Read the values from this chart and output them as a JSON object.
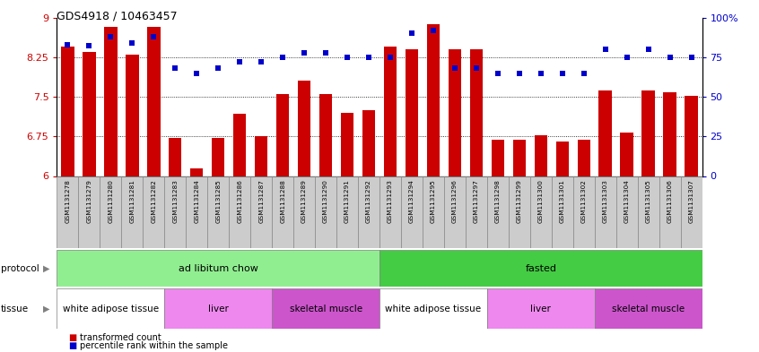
{
  "title": "GDS4918 / 10463457",
  "samples": [
    "GSM1131278",
    "GSM1131279",
    "GSM1131280",
    "GSM1131281",
    "GSM1131282",
    "GSM1131283",
    "GSM1131284",
    "GSM1131285",
    "GSM1131286",
    "GSM1131287",
    "GSM1131288",
    "GSM1131289",
    "GSM1131290",
    "GSM1131291",
    "GSM1131292",
    "GSM1131293",
    "GSM1131294",
    "GSM1131295",
    "GSM1131296",
    "GSM1131297",
    "GSM1131298",
    "GSM1131299",
    "GSM1131300",
    "GSM1131301",
    "GSM1131302",
    "GSM1131303",
    "GSM1131304",
    "GSM1131305",
    "GSM1131306",
    "GSM1131307"
  ],
  "bar_values": [
    8.45,
    8.35,
    8.82,
    8.3,
    8.82,
    6.72,
    6.15,
    6.72,
    7.18,
    6.75,
    7.55,
    7.8,
    7.55,
    7.2,
    7.25,
    8.45,
    8.4,
    8.88,
    8.4,
    8.4,
    6.68,
    6.68,
    6.78,
    6.65,
    6.68,
    7.62,
    6.82,
    7.62,
    7.58,
    7.52
  ],
  "percentile_values": [
    83,
    82,
    88,
    84,
    88,
    68,
    65,
    68,
    72,
    72,
    75,
    78,
    78,
    75,
    75,
    75,
    90,
    92,
    68,
    68,
    65,
    65,
    65,
    65,
    65,
    80,
    75,
    80,
    75,
    75
  ],
  "bar_color": "#cc0000",
  "dot_color": "#0000cc",
  "ylim_left": [
    6,
    9
  ],
  "ylim_right": [
    0,
    100
  ],
  "yticks_left": [
    6,
    6.75,
    7.5,
    8.25,
    9
  ],
  "yticks_right": [
    0,
    25,
    50,
    75,
    100
  ],
  "protocol_groups": [
    {
      "label": "ad libitum chow",
      "start": 0,
      "end": 14,
      "color": "#90ee90"
    },
    {
      "label": "fasted",
      "start": 15,
      "end": 29,
      "color": "#44cc44"
    }
  ],
  "tissue_groups": [
    {
      "label": "white adipose tissue",
      "start": 0,
      "end": 4,
      "color": "#ffffff"
    },
    {
      "label": "liver",
      "start": 5,
      "end": 9,
      "color": "#ee88ee"
    },
    {
      "label": "skeletal muscle",
      "start": 10,
      "end": 14,
      "color": "#cc55cc"
    },
    {
      "label": "white adipose tissue",
      "start": 15,
      "end": 19,
      "color": "#ffffff"
    },
    {
      "label": "liver",
      "start": 20,
      "end": 24,
      "color": "#ee88ee"
    },
    {
      "label": "skeletal muscle",
      "start": 25,
      "end": 29,
      "color": "#cc55cc"
    }
  ],
  "dotgrid_lines": [
    6.75,
    7.5,
    8.25
  ],
  "background_color": "#ffffff",
  "bar_width": 0.6,
  "sample_area_color": "#cccccc",
  "sample_area_border": "#888888"
}
